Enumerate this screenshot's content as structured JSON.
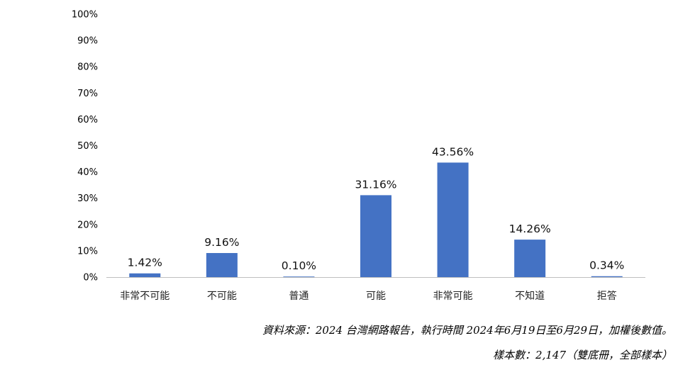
{
  "chart_data": {
    "type": "bar",
    "title": "",
    "xlabel": "",
    "ylabel": "",
    "ylim": [
      0,
      100
    ],
    "yticks": [
      "0%",
      "10%",
      "20%",
      "30%",
      "40%",
      "50%",
      "60%",
      "70%",
      "80%",
      "90%",
      "100%"
    ],
    "categories": [
      "非常不可能",
      "不可能",
      "普通",
      "可能",
      "非常可能",
      "不知道",
      "拒答"
    ],
    "values": [
      1.42,
      9.16,
      0.1,
      31.16,
      43.56,
      14.26,
      0.34
    ],
    "data_labels": [
      "1.42%",
      "9.16%",
      "0.10%",
      "31.16%",
      "43.56%",
      "14.26%",
      "0.34%"
    ],
    "bar_color": "#4472C4",
    "grid": false,
    "legend": "none"
  },
  "notes": {
    "source": "資料來源：2024  台灣網路報告，執行時間 2024年6月19日至6月29日，加權後數值。",
    "sample": "樣本數：2,147（雙底冊，全部樣本）"
  }
}
